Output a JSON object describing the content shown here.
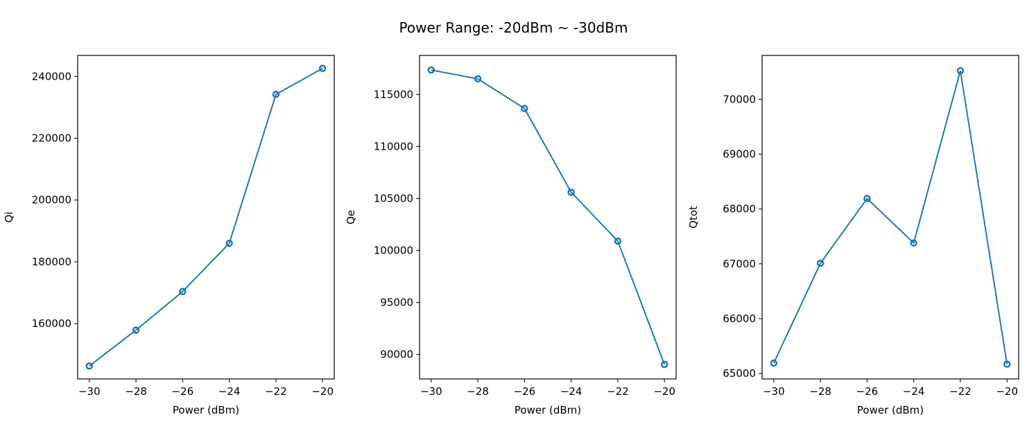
{
  "suptitle": "Power Range: -20dBm ~ -30dBm",
  "colors": {
    "line": "#1f77b4",
    "axis": "#000000",
    "background": "#ffffff"
  },
  "chart_data": [
    {
      "type": "line",
      "title": "",
      "xlabel": "Power (dBm)",
      "ylabel": "Qi",
      "x": [
        -30,
        -28,
        -26,
        -24,
        -22,
        -20
      ],
      "series": [
        {
          "values": [
            146300,
            157900,
            170400,
            186000,
            234200,
            242600
          ]
        }
      ],
      "xlim": [
        -30.5,
        -19.5
      ],
      "ylim": [
        142100,
        246800
      ],
      "xticks": [
        -30,
        -28,
        -26,
        -24,
        -22,
        -20
      ],
      "xtick_labels": [
        "−30",
        "−28",
        "−26",
        "−24",
        "−22",
        "−20"
      ],
      "yticks": [
        160000,
        180000,
        200000,
        220000,
        240000
      ],
      "ytick_labels": [
        "160000",
        "180000",
        "200000",
        "220000",
        "240000"
      ],
      "grid": false,
      "marker": "hollow-circle"
    },
    {
      "type": "line",
      "title": "",
      "xlabel": "Power (dBm)",
      "ylabel": "Qe",
      "x": [
        -30,
        -28,
        -26,
        -24,
        -22,
        -20
      ],
      "series": [
        {
          "values": [
            117350,
            116500,
            113650,
            105600,
            100900,
            89050
          ]
        }
      ],
      "xlim": [
        -30.5,
        -19.5
      ],
      "ylim": [
        87650,
        118750
      ],
      "xticks": [
        -30,
        -28,
        -26,
        -24,
        -22,
        -20
      ],
      "xtick_labels": [
        "−30",
        "−28",
        "−26",
        "−24",
        "−22",
        "−20"
      ],
      "yticks": [
        90000,
        95000,
        100000,
        105000,
        110000,
        115000
      ],
      "ytick_labels": [
        "90000",
        "95000",
        "100000",
        "105000",
        "110000",
        "115000"
      ],
      "grid": false,
      "marker": "hollow-circle"
    },
    {
      "type": "line",
      "title": "",
      "xlabel": "Power (dBm)",
      "ylabel": "Qtot",
      "x": [
        -30,
        -28,
        -26,
        -24,
        -22,
        -20
      ],
      "series": [
        {
          "values": [
            65190,
            67010,
            68190,
            67380,
            70520,
            65170
          ]
        }
      ],
      "xlim": [
        -30.5,
        -19.5
      ],
      "ylim": [
        64900,
        70800
      ],
      "xticks": [
        -30,
        -28,
        -26,
        -24,
        -22,
        -20
      ],
      "xtick_labels": [
        "−30",
        "−28",
        "−26",
        "−24",
        "−22",
        "−20"
      ],
      "yticks": [
        65000,
        66000,
        67000,
        68000,
        69000,
        70000
      ],
      "ytick_labels": [
        "65000",
        "66000",
        "67000",
        "68000",
        "69000",
        "70000"
      ],
      "grid": false,
      "marker": "hollow-circle"
    }
  ]
}
